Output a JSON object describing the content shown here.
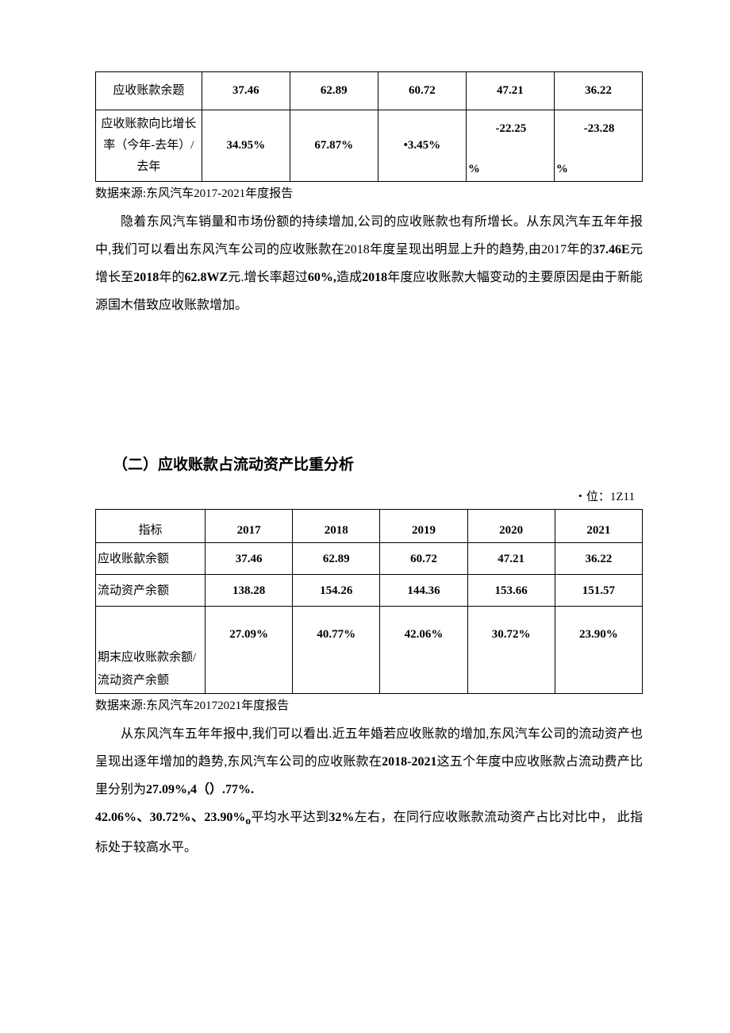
{
  "table1": {
    "rows": [
      {
        "label": "应收账款余题",
        "values": [
          "37.46",
          "62.89",
          "60.72",
          "47.21",
          "36.22"
        ],
        "tall": false
      },
      {
        "label": "应收账款向比增长率（今年-去年）/去年",
        "values": [
          "34.95%",
          "67.87%",
          "•3.45%"
        ],
        "negValues": [
          "-22.25",
          "-23.28"
        ],
        "tall": true
      }
    ]
  },
  "source1": "数据来源:东风汽车2017-2021年度报告",
  "para1_part1": "隐着东风汽车销量和市场份额的持续增加,公司的应收账款也有所增长。从东风汽车五年年报中,我们可以看出东风汽车公司的应收账款在2018年度呈现出明显上升的趋势,由2017年的",
  "para1_bold1": "37.46E",
  "para1_mid1": "元增长至",
  "para1_bold2": "2018",
  "para1_mid2": "年的",
  "para1_bold3": "62.8WZ",
  "para1_mid3": "元.增长率超过",
  "para1_bold4": "60%,",
  "para1_mid4": "造成",
  "para1_bold5": "2018",
  "para1_end": "年度应收账款大幅变动的主要原因是由于新能源国木借致应收账款增加。",
  "section_title": "（二）应收账款占流动资产比重分析",
  "unit": "・位：1Z11",
  "table2": {
    "headers": [
      "指标",
      "2017",
      "2018",
      "2019",
      "2020",
      "2021"
    ],
    "rows": [
      {
        "label": "应收账歙余额",
        "values": [
          "37.46",
          "62.89",
          "60.72",
          "47.21",
          "36.22"
        ],
        "tall": false
      },
      {
        "label": "流动资产余额",
        "values": [
          "138.28",
          "154.26",
          "144.36",
          "153.66",
          "151.57"
        ],
        "tall": false
      },
      {
        "label": "期末应收账款余额/流动资产余颤",
        "values": [
          "27.09%",
          "40.77%",
          "42.06%",
          "30.72%",
          "23.90%"
        ],
        "tall": true
      }
    ]
  },
  "source2": "数据来源:东风汽车20172021年度报告",
  "para2_part1": "从东风汽车五年年报中,我们可以看出.近五年婚若应收账款的增加,东风汽车公司的流动资产也呈现出逐年增加的趋势,东风汽车公司的应收账款在",
  "para2_bold1": "2018-2021",
  "para2_mid1": "这五个年度中应收账款占流动费产比里分别为",
  "para2_bold2": "27.09%,4（）.77%.",
  "para3_bold": "42.06%、30.72%、23.90%",
  "para3_sub": "o",
  "para3_mid": "平均水平达到",
  "para3_bold2": "32%",
  "para3_end": "左右，在同行应收账款流动资产占比对比中， 此指标处于较高水平。"
}
